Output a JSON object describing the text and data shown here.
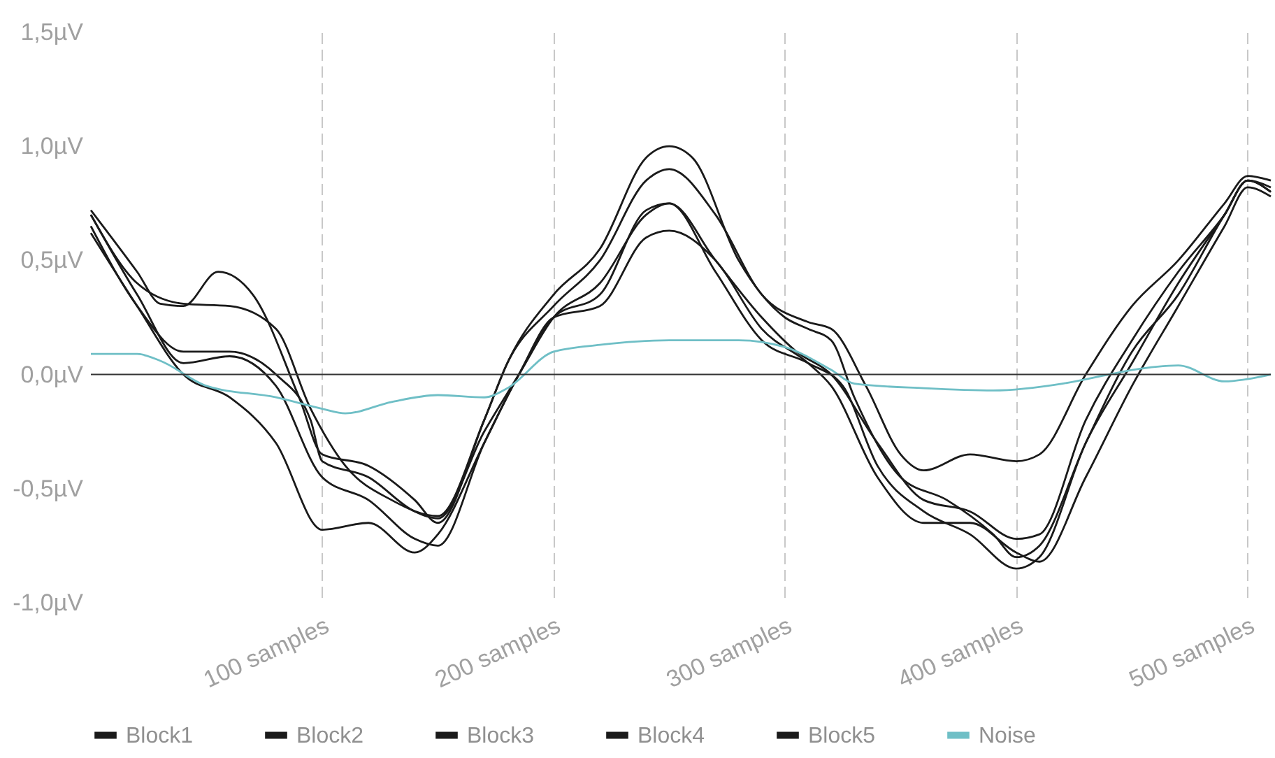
{
  "chart_data": {
    "type": "line",
    "xlim": [
      0,
      510
    ],
    "ylim": [
      -1.0,
      1.5
    ],
    "xticks": [
      {
        "value": 100,
        "label": "100 samples"
      },
      {
        "value": 200,
        "label": "200 samples"
      },
      {
        "value": 300,
        "label": "300 samples"
      },
      {
        "value": 400,
        "label": "400 samples"
      },
      {
        "value": 500,
        "label": "500 samples"
      }
    ],
    "yticks": [
      {
        "value": -1.0,
        "label": "-1,0µV"
      },
      {
        "value": -0.5,
        "label": "-0,5µV"
      },
      {
        "value": 0,
        "label": "0,0µV"
      },
      {
        "value": 0.5,
        "label": "0,5µV"
      },
      {
        "value": 1.0,
        "label": "1,0µV"
      },
      {
        "value": 1.5,
        "label": "1,5µV"
      }
    ],
    "grid": "x",
    "legend": "bottom",
    "line_style": "solid",
    "marker": "none",
    "ref_lines": [
      {
        "axis": "y",
        "value": 0,
        "color": "#333333"
      }
    ],
    "series": [
      {
        "name": "Block1",
        "color": "#1a1a1a",
        "x": [
          0,
          20,
          30,
          40,
          55,
          70,
          90,
          100,
          120,
          140,
          150,
          170,
          180,
          200,
          220,
          240,
          250,
          260,
          280,
          300,
          310,
          320,
          330,
          350,
          370,
          390,
          400,
          410,
          430,
          450,
          470,
          490,
          500,
          510
        ],
        "values": [
          0.72,
          0.45,
          0.31,
          0.3,
          0.45,
          0.35,
          -0.1,
          -0.35,
          -0.4,
          -0.55,
          -0.65,
          -0.2,
          0.05,
          0.35,
          0.55,
          0.95,
          1.0,
          0.95,
          0.5,
          0.25,
          0.2,
          0.15,
          -0.1,
          -0.45,
          -0.55,
          -0.7,
          -0.8,
          -0.75,
          -0.3,
          0.1,
          0.35,
          0.7,
          0.85,
          0.8
        ]
      },
      {
        "name": "Block2",
        "color": "#1a1a1a",
        "x": [
          0,
          20,
          40,
          60,
          80,
          95,
          110,
          130,
          150,
          170,
          180,
          200,
          220,
          240,
          250,
          270,
          290,
          310,
          320,
          335,
          350,
          360,
          380,
          400,
          410,
          430,
          450,
          470,
          490,
          500,
          510
        ],
        "values": [
          0.7,
          0.4,
          0.31,
          0.3,
          0.2,
          -0.15,
          -0.4,
          -0.55,
          -0.62,
          -0.2,
          0.05,
          0.3,
          0.5,
          0.85,
          0.9,
          0.7,
          0.35,
          0.23,
          0.2,
          -0.05,
          -0.35,
          -0.42,
          -0.35,
          -0.38,
          -0.35,
          0.0,
          0.3,
          0.5,
          0.75,
          0.87,
          0.85
        ]
      },
      {
        "name": "Block3",
        "color": "#1a1a1a",
        "x": [
          0,
          20,
          40,
          60,
          80,
          95,
          100,
          120,
          140,
          150,
          170,
          185,
          200,
          220,
          240,
          250,
          270,
          290,
          305,
          320,
          340,
          360,
          380,
          400,
          410,
          430,
          450,
          470,
          490,
          500,
          510
        ],
        "values": [
          0.65,
          0.3,
          0.1,
          0.1,
          0.0,
          -0.2,
          -0.38,
          -0.45,
          -0.6,
          -0.63,
          -0.25,
          0.0,
          0.25,
          0.4,
          0.7,
          0.75,
          0.5,
          0.25,
          0.1,
          0.0,
          -0.3,
          -0.55,
          -0.6,
          -0.72,
          -0.7,
          -0.2,
          0.15,
          0.45,
          0.7,
          0.85,
          0.8
        ]
      },
      {
        "name": "Block4",
        "color": "#1a1a1a",
        "x": [
          0,
          20,
          40,
          60,
          80,
          100,
          120,
          140,
          150,
          170,
          185,
          200,
          220,
          240,
          250,
          270,
          290,
          310,
          325,
          340,
          360,
          380,
          400,
          410,
          430,
          450,
          470,
          490,
          500,
          510
        ],
        "values": [
          0.7,
          0.35,
          0.05,
          0.08,
          -0.05,
          -0.45,
          -0.55,
          -0.72,
          -0.75,
          -0.3,
          0.0,
          0.25,
          0.35,
          0.72,
          0.75,
          0.45,
          0.15,
          0.05,
          -0.05,
          -0.4,
          -0.6,
          -0.7,
          -0.85,
          -0.8,
          -0.3,
          0.05,
          0.4,
          0.7,
          0.85,
          0.82
        ]
      },
      {
        "name": "Block5",
        "color": "#1a1a1a",
        "x": [
          0,
          20,
          40,
          60,
          80,
          100,
          120,
          140,
          150,
          170,
          185,
          200,
          220,
          240,
          250,
          270,
          290,
          310,
          320,
          340,
          360,
          380,
          400,
          410,
          430,
          450,
          470,
          490,
          500,
          510
        ],
        "values": [
          0.62,
          0.3,
          0.0,
          -0.1,
          -0.3,
          -0.68,
          -0.65,
          -0.78,
          -0.7,
          -0.3,
          0.0,
          0.25,
          0.3,
          0.6,
          0.63,
          0.5,
          0.2,
          0.05,
          -0.05,
          -0.45,
          -0.65,
          -0.65,
          -0.78,
          -0.82,
          -0.45,
          -0.05,
          0.3,
          0.65,
          0.82,
          0.78
        ]
      },
      {
        "name": "Noise",
        "color": "#6fbfc6",
        "x": [
          0,
          20,
          30,
          50,
          80,
          100,
          110,
          130,
          150,
          170,
          180,
          200,
          220,
          250,
          280,
          300,
          320,
          330,
          360,
          390,
          420,
          440,
          450,
          470,
          490,
          500,
          510
        ],
        "values": [
          0.09,
          0.09,
          0.06,
          -0.05,
          -0.1,
          -0.15,
          -0.17,
          -0.12,
          -0.09,
          -0.1,
          -0.06,
          0.1,
          0.13,
          0.15,
          0.15,
          0.12,
          0.02,
          -0.04,
          -0.06,
          -0.07,
          -0.04,
          0.0,
          0.02,
          0.04,
          -0.03,
          -0.02,
          0.0
        ]
      }
    ]
  }
}
